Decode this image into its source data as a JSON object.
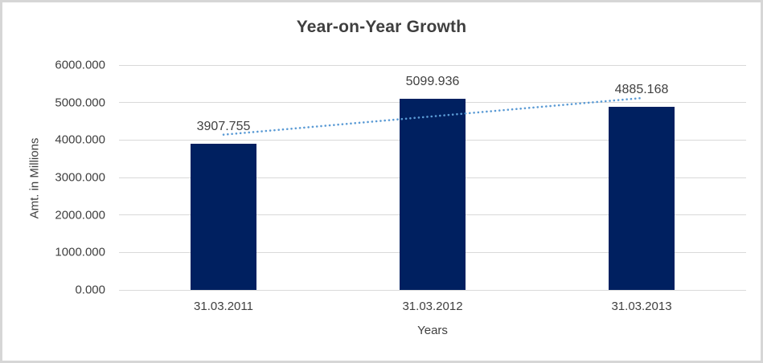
{
  "chart_data": {
    "type": "bar",
    "title": "Year-on-Year Growth",
    "xlabel": "Years",
    "ylabel": "Amt. in Millions",
    "categories": [
      "31.03.2011",
      "31.03.2012",
      "31.03.2013"
    ],
    "values": [
      3907.755,
      5099.936,
      4885.168
    ],
    "value_labels": [
      "3907.755",
      "5099.936",
      "4885.168"
    ],
    "ylim": [
      0,
      6000
    ],
    "ytick_labels": [
      "0.000",
      "1000.000",
      "2000.000",
      "3000.000",
      "4000.000",
      "5000.000",
      "6000.000"
    ],
    "grid": true,
    "legend": "none",
    "trendline": {
      "type": "linear",
      "style": "dotted",
      "color": "#5b9bd5"
    },
    "colors": {
      "bar": "#002060",
      "text": "#404040",
      "title": "#3f3f3f",
      "gridline": "#d9d9d9",
      "background": "#ffffff",
      "border": "#d6d6d6"
    }
  }
}
